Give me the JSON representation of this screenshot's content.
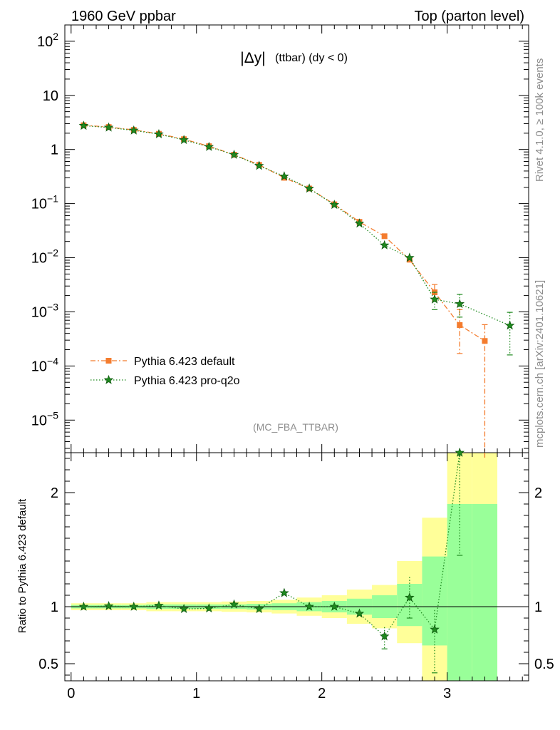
{
  "header": {
    "left": "1960 GeV ppbar",
    "right": "Top (parton level)"
  },
  "side": {
    "version": "Rivet 4.1.0, ≥ 100k events",
    "source": "mcplots.cern.ch [arXiv:2401.10621]"
  },
  "chart_data": {
    "type": "line",
    "title_main": "|Δy|",
    "title_sub": "(ttbar) (dy < 0)",
    "analysis_label": "(MC_FBA_TTBAR)",
    "x": [
      0.1,
      0.3,
      0.5,
      0.7,
      0.9,
      1.1,
      1.3,
      1.5,
      1.7,
      1.9,
      2.1,
      2.3,
      2.5,
      2.7,
      2.9,
      3.1,
      3.3,
      3.5
    ],
    "xlim": [
      -0.05,
      3.65
    ],
    "xticks": [
      0,
      1,
      2,
      3
    ],
    "main_panel": {
      "yscale": "log",
      "ylim": [
        2.5e-06,
        200
      ],
      "ytick_labels": [
        {
          "v": 100,
          "base": "10",
          "exp": "2"
        },
        {
          "v": 10,
          "base": "10",
          "exp": ""
        },
        {
          "v": 1,
          "base": "1",
          "exp": ""
        },
        {
          "v": 0.1,
          "base": "10",
          "exp": "−1"
        },
        {
          "v": 0.01,
          "base": "10",
          "exp": "−2"
        },
        {
          "v": 0.001,
          "base": "10",
          "exp": "−3"
        },
        {
          "v": 0.0001,
          "base": "10",
          "exp": "−4"
        },
        {
          "v": 1e-05,
          "base": "10",
          "exp": "−5"
        }
      ],
      "series": [
        {
          "name": "Pythia 6.423 default",
          "color": "#f47c2e",
          "marker": "square",
          "values": [
            2.8,
            2.6,
            2.3,
            1.95,
            1.55,
            1.15,
            0.8,
            0.52,
            0.3,
            0.19,
            0.097,
            0.046,
            0.025,
            0.0092,
            0.0023,
            0.00057,
            0.00029,
            null
          ],
          "err_lo": [
            null,
            null,
            null,
            null,
            null,
            null,
            null,
            null,
            null,
            null,
            null,
            null,
            null,
            null,
            0.0016,
            0.00017,
            2.5e-06,
            null
          ],
          "err_hi": [
            null,
            null,
            null,
            null,
            null,
            null,
            null,
            null,
            null,
            null,
            null,
            null,
            null,
            null,
            0.0032,
            0.0011,
            0.00058,
            null
          ]
        },
        {
          "name": "Pythia 6.423 pro-q2o",
          "color": "#1f8a1f",
          "marker": "star",
          "values": [
            2.75,
            2.55,
            2.25,
            1.92,
            1.5,
            1.12,
            0.8,
            0.5,
            0.32,
            0.19,
            0.095,
            0.043,
            0.017,
            0.01,
            0.0017,
            0.0014,
            null,
            0.00056
          ],
          "err_lo": [
            null,
            null,
            null,
            null,
            null,
            null,
            null,
            null,
            null,
            null,
            null,
            null,
            null,
            null,
            0.0011,
            0.0008,
            null,
            0.00016
          ],
          "err_hi": [
            null,
            null,
            null,
            null,
            null,
            null,
            null,
            null,
            null,
            null,
            null,
            null,
            null,
            null,
            0.0023,
            0.0021,
            null,
            0.00098
          ]
        }
      ]
    },
    "ratio_panel": {
      "ylabel": "Ratio to Pythia 6.423 default",
      "ylim": [
        0.35,
        2.35
      ],
      "yticks": [
        0.5,
        1,
        2
      ],
      "reference_line": 1,
      "band_yellow": [
        [
          0.97,
          1.03
        ],
        [
          0.97,
          1.03
        ],
        [
          0.97,
          1.03
        ],
        [
          0.96,
          1.04
        ],
        [
          0.96,
          1.04
        ],
        [
          0.96,
          1.04
        ],
        [
          0.955,
          1.045
        ],
        [
          0.95,
          1.05
        ],
        [
          0.94,
          1.06
        ],
        [
          0.92,
          1.08
        ],
        [
          0.9,
          1.1
        ],
        [
          0.85,
          1.15
        ],
        [
          0.81,
          1.19
        ],
        [
          0.68,
          1.4
        ],
        [
          0.35,
          1.78
        ],
        [
          0.35,
          2.35
        ],
        [
          0.35,
          2.35
        ],
        null
      ],
      "band_green": [
        [
          0.985,
          1.015
        ],
        [
          0.985,
          1.015
        ],
        [
          0.985,
          1.015
        ],
        [
          0.98,
          1.02
        ],
        [
          0.98,
          1.02
        ],
        [
          0.98,
          1.02
        ],
        [
          0.98,
          1.02
        ],
        [
          0.975,
          1.025
        ],
        [
          0.97,
          1.03
        ],
        [
          0.96,
          1.04
        ],
        [
          0.95,
          1.05
        ],
        [
          0.93,
          1.07
        ],
        [
          0.9,
          1.1
        ],
        [
          0.83,
          1.2
        ],
        [
          0.66,
          1.44
        ],
        [
          0.35,
          1.9
        ],
        [
          0.35,
          1.9
        ],
        null
      ],
      "ratio_values": [
        1.0,
        1.005,
        1.0,
        1.01,
        0.98,
        0.985,
        1.02,
        0.98,
        1.12,
        1.0,
        1.0,
        0.94,
        0.74,
        1.08,
        0.8,
        2.35,
        null,
        null
      ],
      "ratio_err_lo": [
        null,
        null,
        null,
        null,
        null,
        null,
        null,
        null,
        null,
        null,
        null,
        null,
        0.63,
        0.9,
        0.42,
        1.45,
        null,
        null
      ],
      "ratio_err_hi": [
        null,
        null,
        null,
        null,
        null,
        null,
        null,
        null,
        null,
        null,
        null,
        null,
        0.82,
        1.26,
        0.97,
        2.35,
        null,
        null
      ]
    }
  }
}
